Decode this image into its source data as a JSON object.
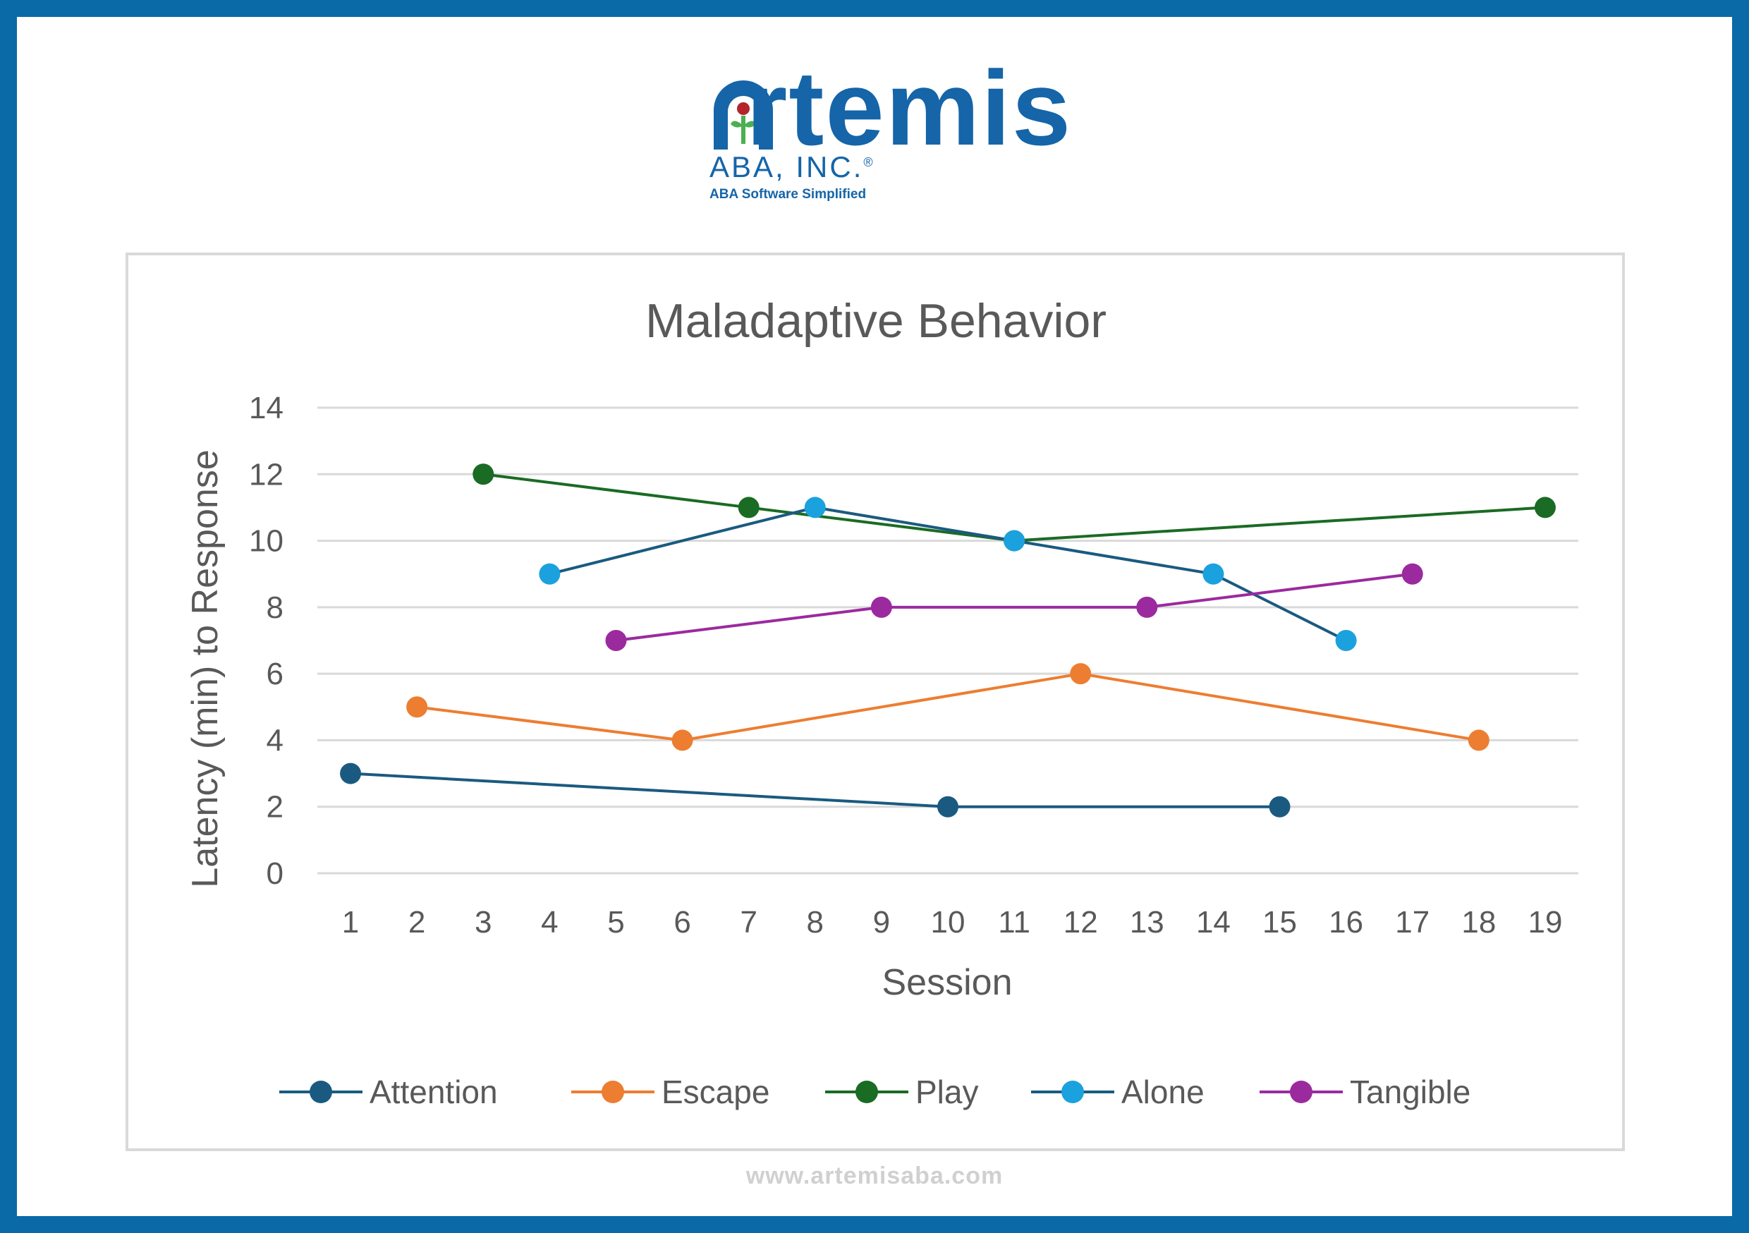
{
  "brand": {
    "name": "rtemis",
    "sub": "ABA, INC.",
    "reg": "®",
    "tagline": "ABA Software Simplified",
    "color": "#1565a8",
    "accent_red": "#b3242b",
    "accent_green": "#4caf50"
  },
  "footer": {
    "url": "www.artemisaba.com"
  },
  "chart_data": {
    "type": "line",
    "title": "Maladaptive Behavior",
    "xlabel": "Session",
    "ylabel": "Latency (min) to Response",
    "categories": [
      "1",
      "2",
      "3",
      "4",
      "5",
      "6",
      "7",
      "8",
      "9",
      "10",
      "11",
      "12",
      "13",
      "14",
      "15",
      "16",
      "17",
      "18",
      "19"
    ],
    "ylim": [
      0,
      14
    ],
    "yticks": [
      "0",
      "2",
      "4",
      "6",
      "8",
      "10",
      "12",
      "14"
    ],
    "grid": true,
    "legend": "bottom",
    "series": [
      {
        "name": "Attention",
        "color": "#1a5a80",
        "points": [
          [
            1,
            3
          ],
          [
            10,
            2
          ],
          [
            15,
            2
          ]
        ]
      },
      {
        "name": "Escape",
        "color": "#ed7d31",
        "points": [
          [
            2,
            5
          ],
          [
            6,
            4
          ],
          [
            12,
            6
          ],
          [
            18,
            4
          ]
        ]
      },
      {
        "name": "Play",
        "color": "#1a6b24",
        "points": [
          [
            3,
            12
          ],
          [
            7,
            11
          ],
          [
            11,
            10
          ],
          [
            19,
            11
          ]
        ]
      },
      {
        "name": "Alone",
        "color": "#1ba1dd",
        "line_color": "#1a5a80",
        "points": [
          [
            4,
            9
          ],
          [
            8,
            11
          ],
          [
            11,
            10
          ],
          [
            14,
            9
          ],
          [
            16,
            7
          ]
        ]
      },
      {
        "name": "Tangible",
        "color": "#9b2a9f",
        "points": [
          [
            5,
            7
          ],
          [
            9,
            8
          ],
          [
            13,
            8
          ],
          [
            17,
            9
          ]
        ]
      }
    ]
  }
}
